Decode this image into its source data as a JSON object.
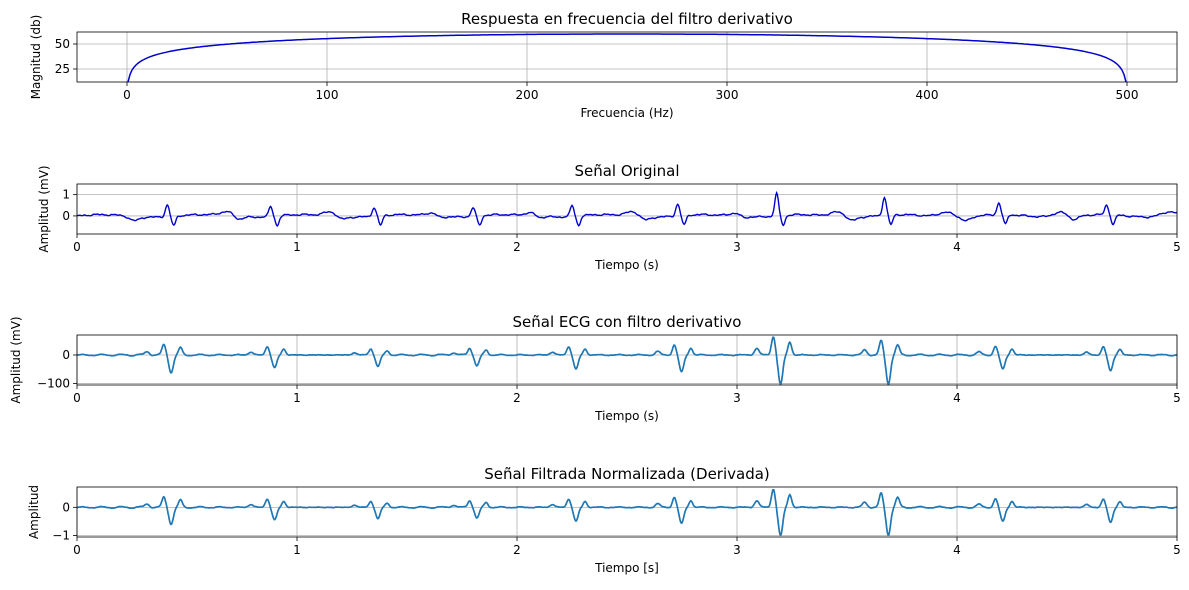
{
  "chart_data": [
    {
      "type": "line",
      "title": "Respuesta en frecuencia del filtro derivativo",
      "xlabel": "Frecuencia (Hz)",
      "ylabel": "Magnitud (db)",
      "xlim": [
        -25,
        525
      ],
      "ylim": [
        12,
        62
      ],
      "xticks": [
        0,
        100,
        200,
        300,
        400,
        500
      ],
      "xtick_labels": [
        "0",
        "100",
        "200",
        "300",
        "400",
        "500"
      ],
      "yticks": [
        25,
        50
      ],
      "ytick_labels": [
        "25",
        "50"
      ],
      "grid": true,
      "line_color": "#0000cd",
      "series": [
        {
          "x": [
            1,
            2,
            5,
            10,
            20,
            30,
            50,
            75,
            100,
            150,
            200,
            250,
            300,
            350,
            400,
            425,
            450,
            470,
            480,
            490,
            495,
            498,
            499
          ],
          "values": [
            16,
            22,
            30,
            36,
            42.3,
            45.8,
            50.2,
            53.5,
            55.8,
            58.6,
            59.7,
            60,
            59.7,
            58.6,
            55.8,
            53.5,
            50.2,
            45.8,
            42.3,
            36,
            30,
            22,
            16
          ]
        }
      ]
    },
    {
      "type": "line",
      "title": "Señal Original",
      "xlabel": "Tiempo (s)",
      "ylabel": "Amplitud (mV)",
      "xlim": [
        0,
        5
      ],
      "ylim": [
        -0.85,
        1.5
      ],
      "xticks": [
        0,
        1,
        2,
        3,
        4,
        5
      ],
      "xtick_labels": [
        "0",
        "1",
        "2",
        "3",
        "4",
        "5"
      ],
      "yticks": [
        0,
        1
      ],
      "ytick_labels": [
        "0",
        "1"
      ],
      "grid": true,
      "line_color": "#0000cd",
      "beat_times": [
        0.41,
        0.88,
        1.35,
        1.8,
        2.25,
        2.73,
        3.18,
        3.67,
        4.19,
        4.68
      ],
      "beat_peaks": [
        0.55,
        0.45,
        0.4,
        0.4,
        0.5,
        0.55,
        1.05,
        0.85,
        0.55,
        0.45
      ]
    },
    {
      "type": "line",
      "title": "Señal ECG con filtro derivativo",
      "xlabel": "Tiempo (s)",
      "ylabel": "Amplitud (mV)",
      "xlim": [
        0,
        5
      ],
      "ylim": [
        -105,
        70
      ],
      "xticks": [
        0,
        1,
        2,
        3,
        4,
        5
      ],
      "xtick_labels": [
        "0",
        "1",
        "2",
        "3",
        "4",
        "5"
      ],
      "yticks": [
        -100,
        0
      ],
      "ytick_labels": [
        "−100",
        "0"
      ],
      "grid": true,
      "line_color": "#1f77b4",
      "beat_times": [
        0.41,
        0.88,
        1.35,
        1.8,
        2.25,
        2.73,
        3.18,
        3.67,
        4.19,
        4.68
      ],
      "beat_pos_peaks": [
        35,
        30,
        22,
        25,
        30,
        35,
        65,
        50,
        30,
        28
      ],
      "beat_neg_peaks": [
        -60,
        -45,
        -40,
        -38,
        -50,
        -60,
        -103,
        -100,
        -50,
        -55
      ]
    },
    {
      "type": "line",
      "title": "Señal Filtrada Normalizada (Derivada)",
      "xlabel": "Tiempo [s]",
      "ylabel": "Amplitud",
      "xlim": [
        0,
        5
      ],
      "ylim": [
        -1.05,
        0.72
      ],
      "xticks": [
        0,
        1,
        2,
        3,
        4,
        5
      ],
      "xtick_labels": [
        "0",
        "1",
        "2",
        "3",
        "4",
        "5"
      ],
      "yticks": [
        -1,
        0
      ],
      "ytick_labels": [
        "−1",
        "0"
      ],
      "grid": true,
      "line_color": "#1f77b4",
      "beat_times": [
        0.41,
        0.88,
        1.35,
        1.8,
        2.25,
        2.73,
        3.18,
        3.67,
        4.19,
        4.68
      ],
      "beat_pos_peaks": [
        0.35,
        0.3,
        0.22,
        0.25,
        0.3,
        0.35,
        0.65,
        0.5,
        0.3,
        0.28
      ],
      "beat_neg_peaks": [
        -0.58,
        -0.45,
        -0.4,
        -0.38,
        -0.5,
        -0.58,
        -1.0,
        -0.97,
        -0.5,
        -0.53
      ]
    }
  ]
}
